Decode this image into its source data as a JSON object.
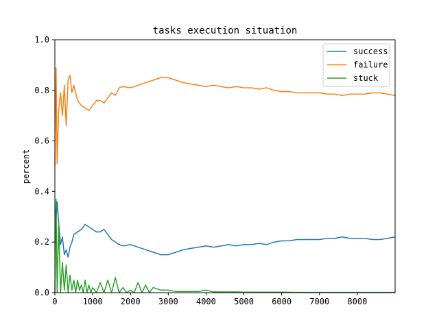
{
  "chart_data": {
    "type": "line",
    "title": "tasks execution situation",
    "xlabel": "",
    "ylabel": "percent",
    "xlim": [
      0,
      9000
    ],
    "ylim": [
      0,
      1.0
    ],
    "x_ticks": [
      0,
      1000,
      2000,
      3000,
      4000,
      5000,
      6000,
      7000,
      8000
    ],
    "x_tick_labels": [
      "0",
      "1000",
      "2000",
      "3000",
      "4000",
      "5000",
      "6000",
      "7000",
      "8000"
    ],
    "y_ticks": [
      0.0,
      0.2,
      0.4,
      0.6,
      0.8,
      1.0
    ],
    "y_tick_labels": [
      "0.0",
      "0.2",
      "0.4",
      "0.6",
      "0.8",
      "1.0"
    ],
    "grid": false,
    "legend_position": "top-right",
    "series": [
      {
        "name": "success",
        "color": "#1f77b4",
        "x": [
          0,
          30,
          60,
          100,
          150,
          200,
          250,
          300,
          350,
          400,
          450,
          500,
          600,
          700,
          800,
          900,
          1000,
          1100,
          1200,
          1300,
          1400,
          1500,
          1600,
          1700,
          1800,
          2000,
          2200,
          2400,
          2600,
          2800,
          3000,
          3200,
          3400,
          3600,
          3800,
          4000,
          4200,
          4400,
          4600,
          4800,
          5000,
          5200,
          5400,
          5600,
          5800,
          6000,
          6200,
          6400,
          6600,
          6800,
          7000,
          7200,
          7400,
          7600,
          7800,
          8000,
          8200,
          8400,
          8600,
          8800,
          9000
        ],
        "y": [
          0.33,
          0.28,
          0.36,
          0.28,
          0.19,
          0.22,
          0.15,
          0.17,
          0.14,
          0.18,
          0.2,
          0.23,
          0.24,
          0.25,
          0.27,
          0.26,
          0.25,
          0.24,
          0.24,
          0.25,
          0.23,
          0.21,
          0.2,
          0.19,
          0.185,
          0.19,
          0.18,
          0.17,
          0.16,
          0.15,
          0.15,
          0.16,
          0.17,
          0.175,
          0.18,
          0.185,
          0.18,
          0.185,
          0.19,
          0.185,
          0.19,
          0.19,
          0.195,
          0.19,
          0.2,
          0.205,
          0.205,
          0.21,
          0.21,
          0.21,
          0.21,
          0.215,
          0.215,
          0.22,
          0.215,
          0.215,
          0.215,
          0.21,
          0.21,
          0.215,
          0.22
        ]
      },
      {
        "name": "failure",
        "color": "#ff7f0e",
        "x": [
          0,
          30,
          60,
          100,
          150,
          200,
          250,
          300,
          350,
          400,
          450,
          500,
          600,
          700,
          800,
          900,
          1000,
          1100,
          1200,
          1300,
          1400,
          1500,
          1600,
          1700,
          1800,
          2000,
          2200,
          2400,
          2600,
          2800,
          3000,
          3200,
          3400,
          3600,
          3800,
          4000,
          4200,
          4400,
          4600,
          4800,
          5000,
          5200,
          5400,
          5600,
          5800,
          6000,
          6200,
          6400,
          6600,
          6800,
          7000,
          7200,
          7400,
          7600,
          7800,
          8000,
          8200,
          8400,
          8600,
          8800,
          9000
        ],
        "y": [
          0.5,
          0.89,
          0.51,
          0.72,
          0.79,
          0.7,
          0.82,
          0.66,
          0.84,
          0.86,
          0.79,
          0.82,
          0.76,
          0.74,
          0.73,
          0.72,
          0.74,
          0.76,
          0.76,
          0.75,
          0.77,
          0.79,
          0.78,
          0.81,
          0.815,
          0.81,
          0.82,
          0.83,
          0.84,
          0.85,
          0.85,
          0.84,
          0.83,
          0.825,
          0.82,
          0.815,
          0.82,
          0.815,
          0.81,
          0.815,
          0.81,
          0.81,
          0.805,
          0.81,
          0.8,
          0.795,
          0.795,
          0.79,
          0.79,
          0.79,
          0.79,
          0.785,
          0.785,
          0.78,
          0.785,
          0.785,
          0.785,
          0.79,
          0.79,
          0.785,
          0.78
        ]
      },
      {
        "name": "stuck",
        "color": "#2ca02c",
        "x": [
          0,
          30,
          60,
          100,
          150,
          200,
          250,
          300,
          350,
          400,
          450,
          500,
          550,
          600,
          650,
          700,
          750,
          800,
          850,
          900,
          950,
          1000,
          1100,
          1200,
          1300,
          1400,
          1500,
          1600,
          1700,
          1800,
          1900,
          2000,
          2100,
          2200,
          2300,
          2400,
          2500,
          2600,
          2800,
          3000,
          3200,
          3400,
          3600,
          3800,
          4000,
          4200,
          4400,
          4600,
          4800,
          5000,
          5500,
          6000,
          6500,
          7000,
          7500,
          8000,
          8500,
          9000
        ],
        "y": [
          0.0,
          0.37,
          0.0,
          0.27,
          0.0,
          0.12,
          0.01,
          0.11,
          0.0,
          0.07,
          0.01,
          0.05,
          0.0,
          0.05,
          0.01,
          0.03,
          0.0,
          0.05,
          0.0,
          0.03,
          0.0,
          0.02,
          0.0,
          0.04,
          0.0,
          0.05,
          0.0,
          0.06,
          0.0,
          0.02,
          0.0,
          0.01,
          0.0,
          0.04,
          0.0,
          0.03,
          0.0,
          0.02,
          0.01,
          0.01,
          0.005,
          0.005,
          0.005,
          0.005,
          0.01,
          0.003,
          0.003,
          0.003,
          0.003,
          0.002,
          0.002,
          0.002,
          0.001,
          0.001,
          0.001,
          0.001,
          0.001,
          0.001
        ]
      }
    ]
  }
}
